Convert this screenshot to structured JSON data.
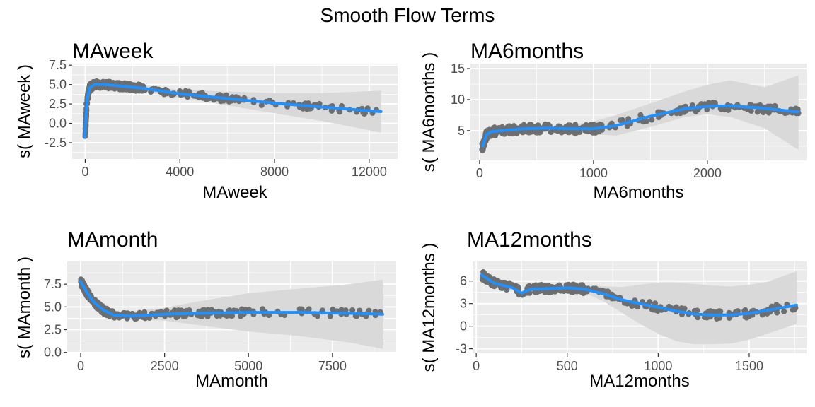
{
  "title": "Smooth Flow Terms",
  "colors": {
    "panel_bg": "#ebebeb",
    "grid": "#ffffff",
    "points": "#6e6e6e",
    "smooth": "#1e90ff",
    "band": "#d9d9d9"
  },
  "chart_data": [
    {
      "type": "scatter",
      "title": "MAweek",
      "xlabel": "MAweek",
      "ylabel": "s( MAweek )",
      "xlim": [
        -550,
        13200
      ],
      "ylim": [
        -4.6,
        7.7
      ],
      "xticks": [
        0,
        4000,
        8000,
        12000
      ],
      "yticks": [
        -2.5,
        0.0,
        2.5,
        5.0,
        7.5
      ],
      "ytick_labels": [
        "-2.5",
        "0.0",
        "2.5",
        "5.0",
        "7.5"
      ],
      "grid": true,
      "smooth": {
        "x": [
          0,
          40,
          100,
          200,
          400,
          800,
          1500,
          2500,
          4000,
          6000,
          8000,
          10000,
          12500
        ],
        "y": [
          -1.8,
          1.0,
          3.3,
          4.6,
          5.0,
          5.0,
          4.8,
          4.5,
          3.8,
          3.2,
          2.6,
          2.1,
          1.5
        ],
        "lower": [
          -2.2,
          0.6,
          2.9,
          4.3,
          4.8,
          4.8,
          4.5,
          4.1,
          3.3,
          2.3,
          1.3,
          0.3,
          -1.2
        ],
        "upper": [
          -1.4,
          1.4,
          3.7,
          4.9,
          5.2,
          5.2,
          5.1,
          4.9,
          4.3,
          4.1,
          3.9,
          3.9,
          4.2
        ]
      },
      "points": {
        "clusters": [
          {
            "x": [
              0,
              60
            ],
            "y": [
              -2.0,
              3.0
            ],
            "n": 40
          },
          {
            "x": [
              50,
              300
            ],
            "y": [
              2.5,
              6.5
            ],
            "n": 80
          },
          {
            "x": [
              250,
              2500
            ],
            "y": [
              3.8,
              6.5
            ],
            "n": 160
          },
          {
            "x": [
              2500,
              6000
            ],
            "y": [
              2.7,
              4.8
            ],
            "n": 60
          },
          {
            "x": [
              6000,
              12500
            ],
            "y": [
              1.2,
              3.4
            ],
            "n": 60
          }
        ],
        "spread": 0.45
      }
    },
    {
      "type": "scatter",
      "title": "MA6months",
      "xlabel": "MA6months",
      "ylabel": "s( MA6months )",
      "xlim": [
        -80,
        2870
      ],
      "ylim": [
        0.2,
        15.8
      ],
      "xticks": [
        0,
        1000,
        2000
      ],
      "yticks": [
        5,
        10,
        15
      ],
      "ytick_labels": [
        "5",
        "10",
        "15"
      ],
      "grid": true,
      "smooth": {
        "x": [
          30,
          60,
          100,
          200,
          400,
          600,
          800,
          1000,
          1200,
          1500,
          1800,
          2000,
          2200,
          2500,
          2800
        ],
        "y": [
          2.5,
          4.3,
          4.8,
          5.0,
          5.3,
          5.4,
          5.3,
          5.3,
          5.8,
          7.3,
          8.5,
          8.9,
          9.0,
          8.6,
          8.0
        ],
        "lower": [
          2.0,
          3.9,
          4.4,
          4.7,
          5.0,
          5.1,
          4.9,
          4.4,
          4.2,
          5.6,
          7.2,
          7.6,
          7.2,
          5.4,
          1.9
        ],
        "upper": [
          3.0,
          4.7,
          5.2,
          5.4,
          5.6,
          5.8,
          5.9,
          6.5,
          7.5,
          9.4,
          11.3,
          12.4,
          13.1,
          12.0,
          13.9
        ]
      },
      "points": {
        "clusters": [
          {
            "x": [
              20,
              70
            ],
            "y": [
              1.5,
              5.5
            ],
            "n": 40
          },
          {
            "x": [
              60,
              400
            ],
            "y": [
              3.5,
              6.5
            ],
            "n": 100
          },
          {
            "x": [
              400,
              1100
            ],
            "y": [
              4.3,
              6.5
            ],
            "n": 110
          },
          {
            "x": [
              1100,
              1600
            ],
            "y": [
              5.5,
              8.0
            ],
            "n": 30
          },
          {
            "x": [
              1600,
              2800
            ],
            "y": [
              7.8,
              9.5
            ],
            "n": 90
          }
        ],
        "spread": 0.7
      }
    },
    {
      "type": "scatter",
      "title": "MAmonth",
      "xlabel": "MAmonth",
      "ylabel": "s( MAmonth )",
      "xlim": [
        -400,
        9400
      ],
      "ylim": [
        -0.1,
        10.0
      ],
      "xticks": [
        0,
        2500,
        5000,
        7500
      ],
      "yticks": [
        0.0,
        2.5,
        5.0,
        7.5
      ],
      "ytick_labels": [
        "0.0",
        "2.5",
        "5.0",
        "7.5"
      ],
      "grid": true,
      "smooth": {
        "x": [
          0,
          200,
          400,
          700,
          1000,
          1500,
          2500,
          3500,
          5000,
          6500,
          8000,
          9000
        ],
        "y": [
          7.8,
          6.5,
          5.5,
          4.6,
          4.1,
          4.0,
          4.2,
          4.3,
          4.4,
          4.4,
          4.3,
          4.2
        ],
        "lower": [
          7.2,
          6.1,
          5.2,
          4.3,
          3.8,
          3.6,
          3.5,
          3.0,
          2.3,
          1.8,
          1.1,
          0.4
        ],
        "upper": [
          8.4,
          6.9,
          5.8,
          4.9,
          4.4,
          4.5,
          4.9,
          5.6,
          6.5,
          7.0,
          7.5,
          8.0
        ]
      },
      "points": {
        "clusters": [
          {
            "x": [
              0,
              250
            ],
            "y": [
              5.0,
              9.3
            ],
            "n": 80
          },
          {
            "x": [
              200,
              1000
            ],
            "y": [
              3.5,
              6.5
            ],
            "n": 100
          },
          {
            "x": [
              1000,
              4500
            ],
            "y": [
              3.2,
              5.2
            ],
            "n": 110
          },
          {
            "x": [
              4500,
              9000
            ],
            "y": [
              3.7,
              4.9
            ],
            "n": 50
          }
        ],
        "spread": 0.4
      }
    },
    {
      "type": "scatter",
      "title": "MA12months",
      "xlabel": "MA12months",
      "ylabel": "s( MA12months )",
      "xlim": [
        -20,
        1815
      ],
      "ylim": [
        -3.6,
        8.6
      ],
      "xticks": [
        0,
        500,
        1000,
        1500
      ],
      "yticks": [
        -3,
        0,
        3,
        6
      ],
      "ytick_labels": [
        "-3",
        "0",
        "3",
        "6"
      ],
      "grid": true,
      "smooth": {
        "x": [
          30,
          100,
          200,
          250,
          300,
          400,
          500,
          600,
          700,
          800,
          900,
          1000,
          1100,
          1200,
          1300,
          1400,
          1500,
          1600,
          1760
        ],
        "y": [
          6.8,
          5.7,
          5.1,
          4.4,
          4.9,
          5.0,
          5.1,
          4.9,
          4.3,
          3.5,
          3.0,
          2.5,
          2.0,
          1.6,
          1.5,
          1.5,
          1.7,
          2.1,
          2.8
        ],
        "lower": [
          6.3,
          5.3,
          4.8,
          4.1,
          4.6,
          4.7,
          4.7,
          4.4,
          3.3,
          1.8,
          0.3,
          -1.0,
          -2.0,
          -2.4,
          -2.4,
          -2.3,
          -1.8,
          -1.0,
          0.3
        ],
        "upper": [
          7.3,
          6.1,
          5.4,
          4.7,
          5.2,
          5.3,
          5.5,
          5.4,
          5.3,
          5.2,
          5.5,
          5.8,
          5.8,
          5.6,
          5.4,
          5.3,
          5.5,
          5.9,
          7.3
        ]
      },
      "points": {
        "clusters": [
          {
            "x": [
              30,
              100
            ],
            "y": [
              4.5,
              8.0
            ],
            "n": 40
          },
          {
            "x": [
              100,
              600
            ],
            "y": [
              3.5,
              6.5
            ],
            "n": 150
          },
          {
            "x": [
              600,
              1000
            ],
            "y": [
              2.0,
              5.0
            ],
            "n": 50
          },
          {
            "x": [
              1000,
              1500
            ],
            "y": [
              0.8,
              3.0
            ],
            "n": 60
          },
          {
            "x": [
              1500,
              1760
            ],
            "y": [
              1.5,
              3.5
            ],
            "n": 30
          }
        ],
        "spread": 0.55
      }
    }
  ]
}
